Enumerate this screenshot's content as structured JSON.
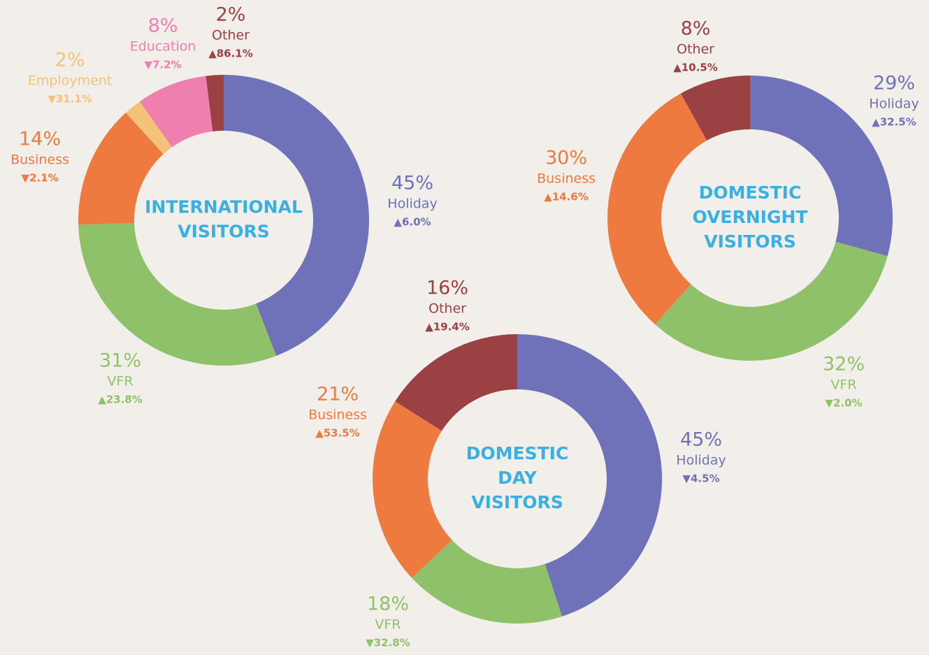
{
  "chart_data": [
    {
      "type": "pie",
      "donut": true,
      "title": [
        "INTERNATIONAL",
        "VISITORS"
      ],
      "categories": [
        "Holiday",
        "VFR",
        "Business",
        "Employment",
        "Education",
        "Other"
      ],
      "values": [
        45,
        31,
        14,
        2,
        8,
        2
      ],
      "value_labels": [
        "45%",
        "31%",
        "14%",
        "2%",
        "8%",
        "2%"
      ],
      "changes": [
        "▲6.0%",
        "▲23.8%",
        "▼2.1%",
        "▼31.1%",
        "▼7.2%",
        "▲86.1%"
      ],
      "colors": [
        "#6f72b8",
        "#8fc06a",
        "#ee7a40",
        "#f5c27a",
        "#ef7fae",
        "#9b4043"
      ]
    },
    {
      "type": "pie",
      "donut": true,
      "title": [
        "DOMESTIC",
        "OVERNIGHT",
        "VISITORS"
      ],
      "categories": [
        "Holiday",
        "VFR",
        "Business",
        "Other"
      ],
      "values": [
        29,
        32,
        30,
        8
      ],
      "value_labels": [
        "29%",
        "32%",
        "30%",
        "8%"
      ],
      "changes": [
        "▲32.5%",
        "▼2.0%",
        "▲14.6%",
        "▲10.5%"
      ],
      "colors": [
        "#6f72b8",
        "#8fc06a",
        "#ee7a40",
        "#9b4043"
      ]
    },
    {
      "type": "pie",
      "donut": true,
      "title": [
        "DOMESTIC",
        "DAY",
        "VISITORS"
      ],
      "categories": [
        "Holiday",
        "VFR",
        "Business",
        "Other"
      ],
      "values": [
        45,
        18,
        21,
        16
      ],
      "value_labels": [
        "45%",
        "18%",
        "21%",
        "16%"
      ],
      "changes": [
        "▼4.5%",
        "▼32.8%",
        "▲53.5%",
        "▲19.4%"
      ],
      "colors": [
        "#6f72b8",
        "#8fc06a",
        "#ee7a40",
        "#9b4043"
      ]
    }
  ]
}
